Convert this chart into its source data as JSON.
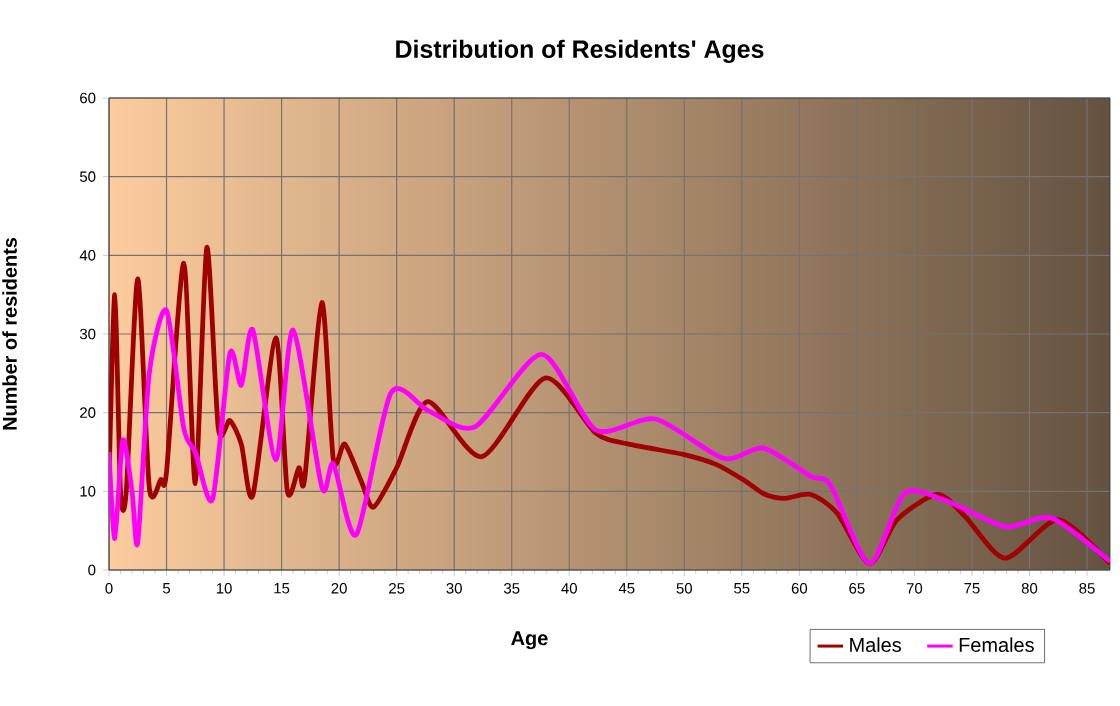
{
  "chart_data": {
    "type": "line",
    "title": "Distribution of Residents' Ages",
    "xlabel": "Age",
    "ylabel": "Number of residents",
    "xlim": [
      0,
      87
    ],
    "ylim": [
      0,
      60
    ],
    "xticks": [
      0,
      5,
      10,
      15,
      20,
      25,
      30,
      35,
      40,
      45,
      50,
      55,
      60,
      65,
      70,
      75,
      80,
      85
    ],
    "yticks": [
      0,
      10,
      20,
      30,
      40,
      50,
      60
    ],
    "grid": true,
    "legend": "bottom right",
    "marker": "none",
    "line_style": "solid",
    "series": [
      {
        "name": "Males",
        "color": "#a00000",
        "x": [
          0,
          0.5,
          1,
          1.5,
          2.5,
          3.5,
          4.5,
          5,
          6.5,
          7.5,
          8.5,
          9.5,
          10.5,
          11.5,
          12.5,
          14.5,
          15.5,
          16.5,
          17,
          18.5,
          19.5,
          20.5,
          22,
          23,
          25,
          27.7,
          32.4,
          37.9,
          42.3,
          45.2,
          49.9,
          52.8,
          55.2,
          56.9,
          58.7,
          61,
          63.3,
          66.1,
          68.5,
          72,
          74.4,
          77.9,
          82.5,
          87
        ],
        "values": [
          11,
          35,
          10,
          10,
          37,
          10.5,
          11.5,
          12.5,
          39,
          11,
          41,
          18,
          19,
          16,
          9.5,
          29.5,
          10,
          13,
          11.5,
          34,
          14,
          16,
          11,
          8,
          13,
          21.4,
          14.4,
          24.4,
          17.4,
          16,
          14.7,
          13.4,
          11.4,
          9.7,
          9.1,
          9.6,
          7.2,
          0.8,
          6.4,
          9.6,
          6.8,
          1.5,
          6.4,
          0.8
        ]
      },
      {
        "name": "Females",
        "color": "#ff00ff",
        "x": [
          0,
          0.5,
          1.2,
          2,
          2.5,
          3.5,
          5,
          6.5,
          7.5,
          9,
          10.5,
          11.5,
          12.5,
          14.5,
          16,
          18.5,
          19.5,
          21.5,
          24.5,
          27.8,
          31.8,
          37.6,
          42.3,
          47.5,
          53.4,
          56.9,
          61,
          62.7,
          66.1,
          69.1,
          72.6,
          77.9,
          81.9,
          87
        ],
        "values": [
          15,
          4,
          16.5,
          10,
          3.5,
          25,
          33,
          18,
          15,
          9,
          27.5,
          23.5,
          30.5,
          14,
          30.5,
          10.5,
          13.5,
          4.5,
          22.5,
          20.2,
          18.2,
          27.4,
          17.8,
          19.2,
          14.2,
          15.5,
          11.9,
          10.8,
          0.8,
          9.7,
          8.9,
          5.5,
          6.6,
          1.1
        ]
      }
    ]
  }
}
